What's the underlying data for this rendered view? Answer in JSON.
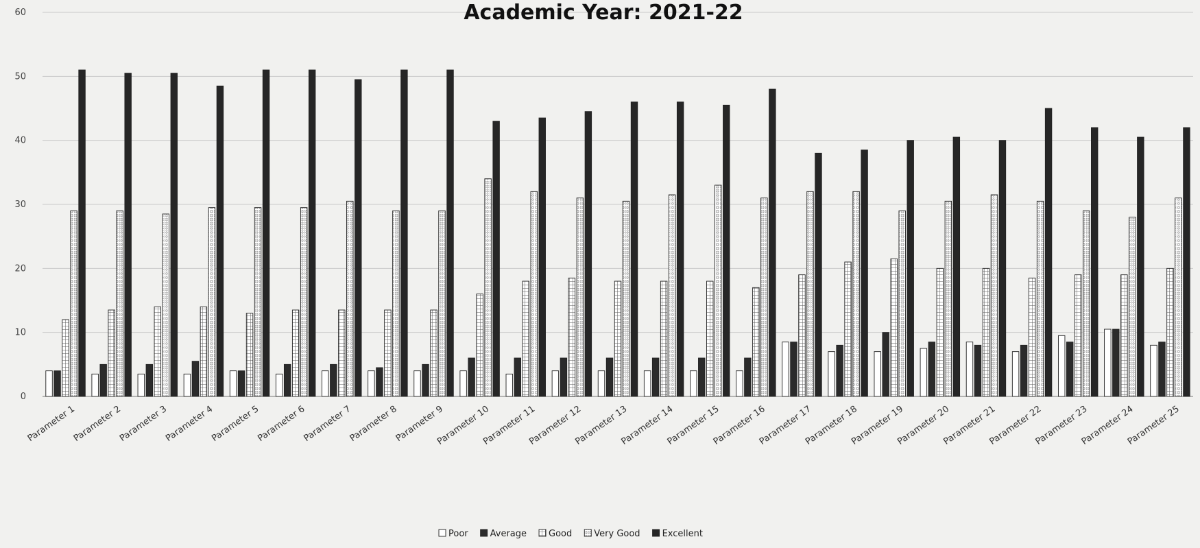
{
  "chart_data": {
    "type": "bar",
    "title": "Academic Year: 2021-22",
    "xlabel": "",
    "ylabel": "",
    "ylim": [
      0,
      60
    ],
    "yticks": [
      0,
      10,
      20,
      30,
      40,
      50,
      60
    ],
    "grid": true,
    "legend_position": "bottom",
    "categories": [
      "Parameter 1",
      "Parameter 2",
      "Parameter 3",
      "Parameter 4",
      "Parameter 5",
      "Parameter 6",
      "Parameter 7",
      "Parameter 8",
      "Parameter 9",
      "Parameter 10",
      "Parameter 11",
      "Parameter 12",
      "Parameter 13",
      "Parameter 14",
      "Parameter 15",
      "Parameter 16",
      "Parameter 17",
      "Parameter 18",
      "Parameter 19",
      "Parameter 20",
      "Parameter 21",
      "Parameter 22",
      "Parameter 23",
      "Parameter 24",
      "Parameter 25"
    ],
    "series": [
      {
        "name": "Poor",
        "color": "#ffffff",
        "pattern": "none",
        "values": [
          4,
          3.5,
          3.5,
          3.5,
          4,
          3.5,
          4,
          4,
          4,
          4,
          3.5,
          4,
          4,
          4,
          4,
          4,
          8.5,
          7,
          7,
          7.5,
          8.5,
          7,
          9.5,
          10.5,
          8
        ]
      },
      {
        "name": "Average",
        "color": "#2b2b2b",
        "pattern": "none",
        "values": [
          4,
          5,
          5,
          5.5,
          4,
          5,
          5,
          4.5,
          5,
          6,
          6,
          6,
          6,
          6,
          6,
          6,
          8.5,
          8,
          10,
          8.5,
          8,
          8,
          8.5,
          10.5,
          8.5
        ]
      },
      {
        "name": "Good",
        "color": "#ffffff",
        "pattern": "grid",
        "values": [
          12,
          13.5,
          14,
          14,
          13,
          13.5,
          13.5,
          13.5,
          13.5,
          16,
          18,
          18.5,
          18,
          18,
          18,
          17,
          19,
          21,
          21.5,
          20,
          20,
          18.5,
          19,
          19,
          20
        ]
      },
      {
        "name": "Very Good",
        "color": "#ffffff",
        "pattern": "hatch",
        "values": [
          29,
          29,
          28.5,
          29.5,
          29.5,
          29.5,
          30.5,
          29,
          29,
          34,
          32,
          31,
          30.5,
          31.5,
          33,
          31,
          32,
          32,
          29,
          30.5,
          31.5,
          30.5,
          29,
          28,
          31
        ]
      },
      {
        "name": "Excellent",
        "color": "#262626",
        "pattern": "none",
        "values": [
          51,
          50.5,
          50.5,
          48.5,
          51,
          51,
          49.5,
          51,
          51,
          43,
          43.5,
          44.5,
          46,
          46,
          45.5,
          48,
          38,
          38.5,
          40,
          40.5,
          40,
          45,
          42,
          40.5,
          42
        ]
      }
    ]
  }
}
